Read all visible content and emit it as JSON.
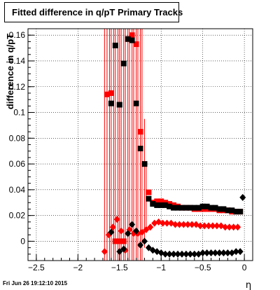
{
  "title": "Fitted difference in q/pT  Primary Tracks",
  "timestamp": "Fri Jun 26 19:12:10 2015",
  "chart_data": {
    "type": "scatter",
    "xlabel": "η",
    "ylabel": "difference in q/pT",
    "xlim": [
      -2.6,
      0.1
    ],
    "ylim": [
      -0.015,
      0.165
    ],
    "grid": true,
    "x_ticks": [
      -2.5,
      -2,
      -1.5,
      -1,
      -0.5,
      0
    ],
    "x_tick_labels": [
      "−2.5",
      "−2",
      "−1.5",
      "−1",
      "−0.5",
      "0"
    ],
    "y_ticks": [
      0,
      0.02,
      0.04,
      0.06,
      0.08,
      0.1,
      0.12,
      0.14,
      0.16
    ],
    "y_tick_labels": [
      "0",
      "0.02",
      "0.04",
      "0.06",
      "0.08",
      "0.1",
      "0.12",
      "0.14",
      "0.16"
    ],
    "colors": {
      "red": "#ff0000",
      "black": "#000000"
    },
    "series": [
      {
        "marker": "square",
        "color": "#ff0000",
        "x": [
          -1.65,
          -1.6,
          -1.55,
          -1.5,
          -1.45,
          -1.4,
          -1.35,
          -1.3,
          -1.25,
          -1.2,
          -1.15,
          -1.1,
          -1.05,
          -1.0,
          -0.95,
          -0.9,
          -0.85,
          -0.8,
          -0.75,
          -0.7,
          -0.65,
          -0.6,
          -0.55,
          -0.5,
          -0.45,
          -0.4,
          -0.35,
          -0.3,
          -0.25,
          -0.2,
          -0.15,
          -0.1,
          -0.05
        ],
        "y": [
          0.114,
          0.115,
          0.0,
          0.0,
          0.0,
          0.157,
          0.16,
          0.153,
          0.085,
          0.06,
          0.038,
          0.03,
          0.031,
          0.031,
          0.03,
          0.029,
          0.028,
          0.027,
          0.026,
          0.026,
          0.026,
          0.025,
          0.025,
          0.025,
          0.025,
          0.025,
          0.025,
          0.024,
          0.024,
          0.024,
          0.023,
          0.023,
          0.023
        ]
      },
      {
        "marker": "square",
        "color": "#000000",
        "x": [
          -1.6,
          -1.55,
          -1.5,
          -1.45,
          -1.4,
          -1.35,
          -1.3,
          -1.25,
          -1.2,
          -1.15,
          -1.1,
          -1.05,
          -1.0,
          -0.95,
          -0.9,
          -0.85,
          -0.8,
          -0.75,
          -0.7,
          -0.65,
          -0.6,
          -0.55,
          -0.5,
          -0.45,
          -0.4,
          -0.35,
          -0.3,
          -0.25,
          -0.2,
          -0.15,
          -0.1,
          -0.05
        ],
        "y": [
          0.107,
          0.152,
          0.106,
          0.138,
          0.157,
          0.156,
          0.107,
          0.072,
          0.06,
          0.033,
          0.029,
          0.028,
          0.028,
          0.028,
          0.027,
          0.026,
          0.026,
          0.026,
          0.026,
          0.026,
          0.026,
          0.026,
          0.027,
          0.027,
          0.026,
          0.026,
          0.025,
          0.025,
          0.024,
          0.024,
          0.023,
          0.023
        ]
      },
      {
        "marker": "diamond",
        "color": "#ff0000",
        "x": [
          -1.68,
          -1.63,
          -1.58,
          -1.53,
          -1.48,
          -1.43,
          -1.38,
          -1.33,
          -1.28,
          -1.23,
          -1.18,
          -1.13,
          -1.08,
          -1.03,
          -0.98,
          -0.93,
          -0.88,
          -0.83,
          -0.78,
          -0.73,
          -0.68,
          -0.63,
          -0.58,
          -0.53,
          -0.48,
          -0.43,
          -0.38,
          -0.33,
          -0.28,
          -0.23,
          -0.18,
          -0.13,
          -0.08
        ],
        "y": [
          -0.008,
          0.005,
          0.011,
          0.017,
          0.008,
          -0.007,
          0.009,
          0.006,
          0.006,
          0.007,
          0.009,
          0.011,
          0.014,
          0.015,
          0.014,
          0.014,
          0.014,
          0.013,
          0.013,
          0.013,
          0.013,
          0.013,
          0.013,
          0.012,
          0.012,
          0.012,
          0.012,
          0.012,
          0.012,
          0.011,
          0.011,
          0.011,
          0.011
        ]
      },
      {
        "marker": "diamond",
        "color": "#000000",
        "x": [
          -1.6,
          -1.5,
          -1.45,
          -1.4,
          -1.35,
          -1.3,
          -1.25,
          -1.2,
          -1.15,
          -1.1,
          -1.05,
          -1.0,
          -0.95,
          -0.9,
          -0.85,
          -0.8,
          -0.75,
          -0.7,
          -0.65,
          -0.6,
          -0.55,
          -0.5,
          -0.45,
          -0.4,
          -0.35,
          -0.3,
          -0.25,
          -0.2,
          -0.15,
          -0.1,
          -0.05,
          -0.02
        ],
        "y": [
          0.007,
          -0.008,
          -0.006,
          0.006,
          0.013,
          0.008,
          -0.003,
          0.0,
          -0.005,
          -0.007,
          -0.008,
          -0.009,
          -0.01,
          -0.01,
          -0.01,
          -0.01,
          -0.01,
          -0.01,
          -0.01,
          -0.01,
          -0.01,
          -0.009,
          -0.009,
          -0.009,
          -0.009,
          -0.009,
          -0.009,
          -0.009,
          -0.009,
          -0.008,
          -0.008,
          0.034
        ]
      }
    ],
    "red_error_bar_x": [
      -1.68,
      -1.65,
      -1.62,
      -1.6,
      -1.57,
      -1.55,
      -1.52,
      -1.5,
      -1.48,
      -1.45,
      -1.43,
      -1.4,
      -1.38,
      -1.35,
      -1.33,
      -1.3,
      -1.28,
      -1.25,
      -1.23,
      -1.2,
      -1.18
    ],
    "red_error_bar_y_low": [
      -0.015,
      -0.015,
      -0.015,
      -0.015,
      -0.015,
      -0.015,
      -0.015,
      -0.015,
      -0.015,
      -0.015,
      -0.015,
      -0.015,
      -0.015,
      -0.015,
      -0.015,
      -0.015,
      -0.015,
      -0.015,
      -0.015,
      -0.005,
      0.01
    ],
    "red_error_bar_y_high": [
      0.165,
      0.165,
      0.165,
      0.165,
      0.165,
      0.165,
      0.165,
      0.165,
      0.165,
      0.165,
      0.165,
      0.165,
      0.165,
      0.165,
      0.165,
      0.165,
      0.165,
      0.165,
      0.165,
      0.095,
      0.06
    ]
  }
}
